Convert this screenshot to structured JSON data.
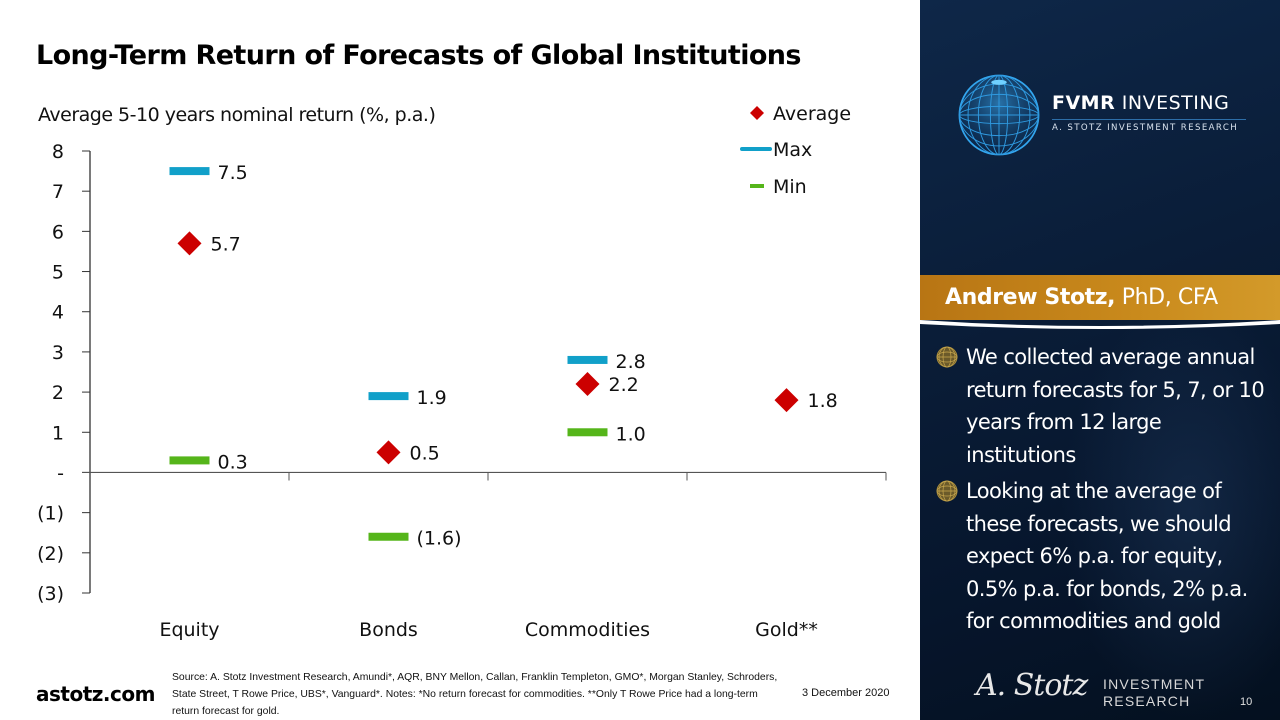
{
  "slide": {
    "title": "Long-Term Return of Forecasts of Global Institutions",
    "page_number": "10"
  },
  "chart_data": {
    "type": "scatter",
    "title": "Long-Term Return of Forecasts of Global Institutions",
    "subtitle": "Average 5-10 years nominal return (%, p.a.)",
    "xlabel": "",
    "ylabel": "Average 5-10 years nominal return (%, p.a.)",
    "categories": [
      "Equity",
      "Bonds",
      "Commodities",
      "Gold**"
    ],
    "ylim": [
      -3,
      8
    ],
    "yticks": [
      8,
      7,
      6,
      5,
      4,
      3,
      2,
      1,
      0,
      -1,
      -2,
      -3
    ],
    "ytick_labels": [
      "8",
      "7",
      "6",
      "5",
      "4",
      "3",
      "2",
      "1",
      "-",
      "(1)",
      "(2)",
      "(3)"
    ],
    "grid": false,
    "legend_position": "top-right",
    "series": [
      {
        "name": "Average",
        "marker": "diamond",
        "color": "#cc0000",
        "values": [
          5.7,
          0.5,
          2.2,
          1.8
        ],
        "labels": [
          "5.7",
          "0.5",
          "2.2",
          "1.8"
        ]
      },
      {
        "name": "Max",
        "marker": "dash",
        "color": "#11a0c9",
        "values": [
          7.5,
          1.9,
          2.8,
          null
        ],
        "labels": [
          "7.5",
          "1.9",
          "2.8",
          ""
        ]
      },
      {
        "name": "Min",
        "marker": "dash",
        "color": "#55b51a",
        "values": [
          0.3,
          -1.6,
          1.0,
          null
        ],
        "labels": [
          "0.3",
          "(1.6)",
          "1.0",
          ""
        ]
      }
    ]
  },
  "footer": {
    "site": "astotz.com",
    "source": "Source: A. Stotz Investment Research, Amundi*, AQR, BNY Mellon, Callan, Franklin Templeton, GMO*, Morgan Stanley, Schroders, State Street, T Rowe Price, UBS*, Vanguard*. Notes: *No return forecast for commodities. **Only T Rowe Price had a long-term return forecast for gold.",
    "date": "3 December 2020"
  },
  "sidebar": {
    "brand_bold": "FVMR",
    "brand_rest": " INVESTING",
    "brand_sub": "A. STOTZ INVESTMENT RESEARCH",
    "author_name": "Andrew Stotz,",
    "author_credentials": " PhD, CFA",
    "bullets": [
      "We collected average annual return forecasts for 5, 7, or 10 years from 12 large institutions",
      "Looking at the average of these forecasts, we should expect 6% p.a. for equity, 0.5% p.a. for bonds, 2% p.a. for commodities and gold"
    ],
    "signature": "A. Stotz",
    "signature_line1": "INVESTMENT",
    "signature_line2": "RESEARCH"
  },
  "colors": {
    "average": "#cc0000",
    "max": "#11a0c9",
    "min": "#55b51a",
    "banner": "#c1801a",
    "panel": "#0a1d38"
  }
}
